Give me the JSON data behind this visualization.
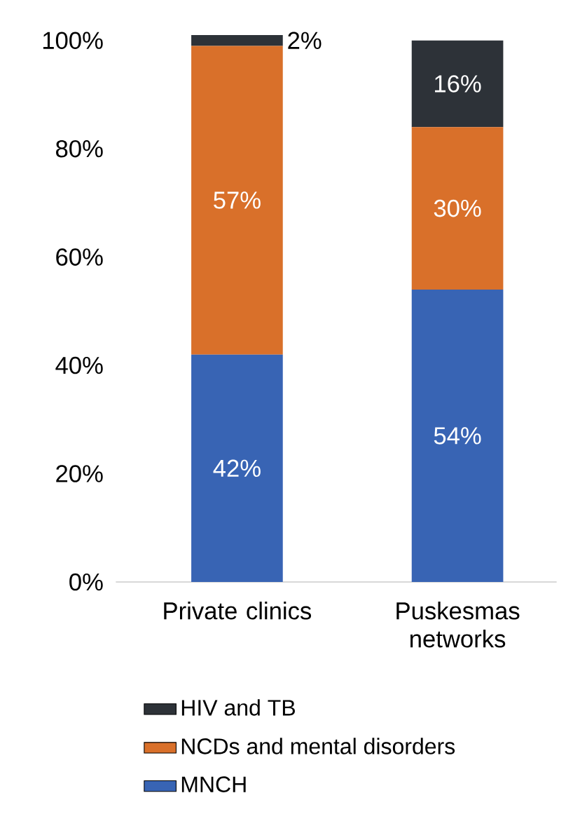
{
  "chart_data": {
    "type": "bar",
    "stacked": true,
    "categories": [
      "Private clinics",
      "Puskesmas networks"
    ],
    "series": [
      {
        "name": "MNCH",
        "color": "#3864b4",
        "values": [
          42,
          54
        ],
        "value_labels": [
          "42%",
          "54%"
        ]
      },
      {
        "name": "NCDs and mental disorders",
        "color": "#d9702a",
        "values": [
          57,
          30
        ],
        "value_labels": [
          "57%",
          "30%"
        ]
      },
      {
        "name": "HIV and TB",
        "color": "#2d3238",
        "values": [
          2,
          16
        ],
        "value_labels": [
          "2%",
          "16%"
        ]
      }
    ],
    "ylim": [
      0,
      101
    ],
    "yticks": [
      {
        "value": 0,
        "label": "0%"
      },
      {
        "value": 20,
        "label": "20%"
      },
      {
        "value": 40,
        "label": "40%"
      },
      {
        "value": 60,
        "label": "60%"
      },
      {
        "value": 80,
        "label": "80%"
      },
      {
        "value": 100,
        "label": "100%"
      }
    ],
    "legend": "bottom"
  }
}
